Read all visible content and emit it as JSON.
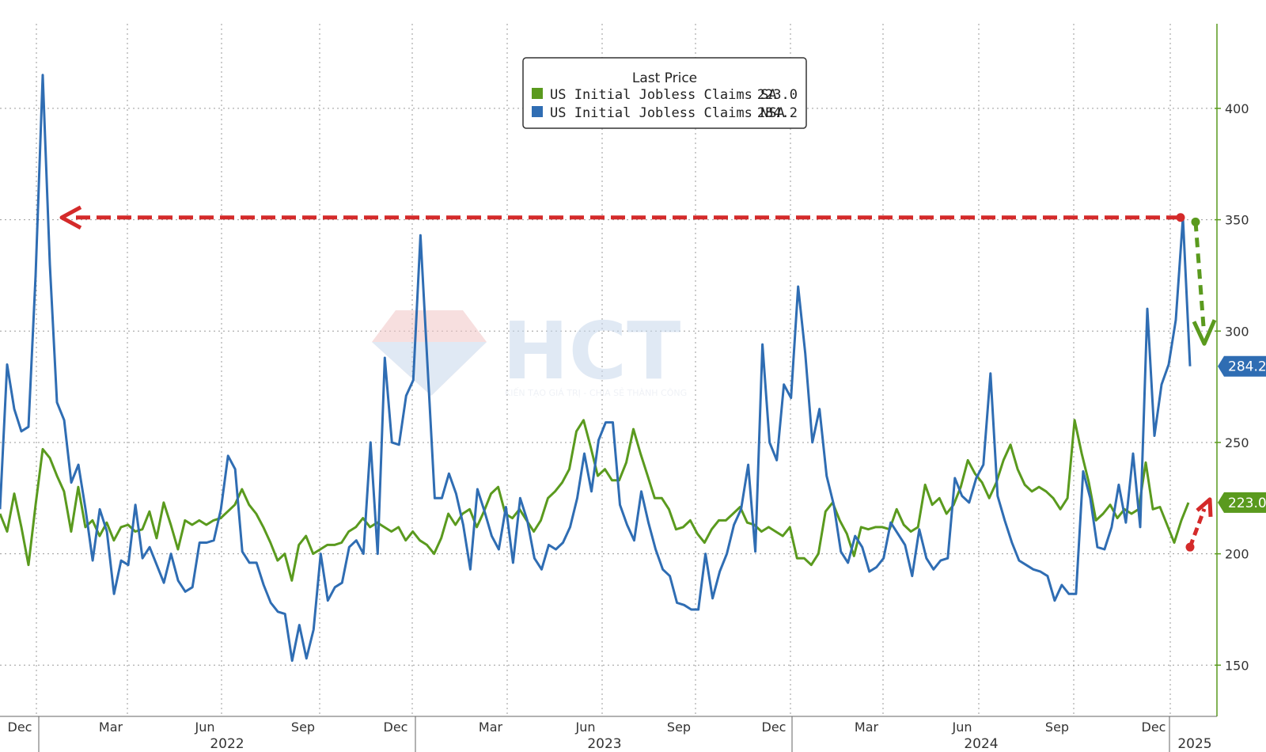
{
  "chart_data": {
    "type": "line",
    "legend": {
      "title": "Last Price",
      "placement": "top-center",
      "entries": [
        {
          "name": "US Initial Jobless Claims SA",
          "last": "223.0",
          "color": "#5a9a1e"
        },
        {
          "name": "US Initial Jobless Claims NSA",
          "last": "284.2",
          "color": "#2f6db3"
        }
      ]
    },
    "y_axis": {
      "side": "right",
      "ticks": [
        150,
        200,
        250,
        300,
        350,
        400
      ],
      "ylim": [
        127,
        438
      ],
      "grid": true
    },
    "x_axis": {
      "month_ticks": [
        "Dec",
        "Mar",
        "Jun",
        "Sep",
        "Dec",
        "Mar",
        "Jun",
        "Sep",
        "Dec",
        "Mar",
        "Jun",
        "Sep",
        "Dec"
      ],
      "year_labels": [
        "2022",
        "2023",
        "2024",
        "2025"
      ],
      "grid": true
    },
    "series": [
      {
        "name": "US Initial Jobless Claims NSA",
        "color": "#2f6db3",
        "values": [
          220,
          285,
          265,
          255,
          257,
          325,
          415,
          330,
          268,
          260,
          232,
          240,
          220,
          197,
          220,
          210,
          182,
          197,
          195,
          222,
          198,
          203,
          195,
          187,
          200,
          188,
          183,
          185,
          205,
          205,
          206,
          220,
          244,
          238,
          201,
          196,
          196,
          186,
          178,
          174,
          173,
          152,
          168,
          153,
          166,
          200,
          179,
          185,
          187,
          203,
          206,
          200,
          250,
          200,
          288,
          250,
          249,
          271,
          278,
          343,
          284,
          225,
          225,
          236,
          227,
          213,
          193,
          229,
          219,
          208,
          202,
          221,
          196,
          225,
          215,
          198,
          193,
          204,
          202,
          205,
          212,
          225,
          245,
          228,
          251,
          259,
          259,
          222,
          213,
          206,
          228,
          214,
          202,
          193,
          190,
          178,
          177,
          175,
          175,
          200,
          180,
          192,
          200,
          213,
          220,
          240,
          201,
          294,
          250,
          242,
          276,
          270,
          320,
          290,
          250,
          265,
          235,
          222,
          201,
          196,
          208,
          203,
          192,
          194,
          198,
          214,
          209,
          204,
          190,
          211,
          198,
          193,
          197,
          198,
          234,
          226,
          223,
          234,
          240,
          281,
          226,
          215,
          205,
          197,
          195,
          193,
          192,
          190,
          179,
          186,
          182,
          182,
          237,
          225,
          203,
          202,
          212,
          231,
          214,
          245,
          212,
          310,
          253,
          276,
          285,
          305,
          351,
          284.2
        ],
        "last_value": "284.2"
      },
      {
        "name": "US Initial Jobless Claims SA",
        "color": "#5a9a1e",
        "values": [
          218,
          210,
          227,
          212,
          195,
          222,
          247,
          243,
          235,
          228,
          210,
          230,
          212,
          215,
          208,
          214,
          206,
          212,
          213,
          210,
          211,
          219,
          207,
          223,
          213,
          202,
          215,
          213,
          215,
          213,
          215,
          216,
          219,
          222,
          229,
          222,
          218,
          212,
          205,
          197,
          200,
          188,
          204,
          208,
          200,
          202,
          204,
          204,
          205,
          210,
          212,
          216,
          212,
          214,
          212,
          210,
          212,
          206,
          210,
          206,
          204,
          200,
          207,
          218,
          213,
          218,
          220,
          212,
          219,
          227,
          230,
          218,
          216,
          220,
          215,
          210,
          215,
          225,
          228,
          232,
          238,
          255,
          260,
          248,
          235,
          238,
          233,
          233,
          241,
          256,
          245,
          235,
          225,
          225,
          220,
          211,
          212,
          215,
          209,
          205,
          211,
          215,
          215,
          218,
          221,
          214,
          213,
          210,
          212,
          210,
          208,
          212,
          198,
          198,
          195,
          200,
          219,
          223,
          215,
          209,
          199,
          212,
          211,
          212,
          212,
          211,
          220,
          213,
          210,
          212,
          231,
          222,
          225,
          218,
          222,
          230,
          242,
          236,
          232,
          225,
          232,
          242,
          249,
          238,
          231,
          228,
          230,
          228,
          225,
          220,
          225,
          260,
          245,
          232,
          215,
          218,
          222,
          216,
          220,
          218,
          220,
          241,
          220,
          221,
          213,
          205,
          215,
          223
        ],
        "last_value": "223.0"
      }
    ],
    "annotations": [
      {
        "type": "dashed-arrow",
        "color": "#d42a2a",
        "from_value": 351,
        "to_value": 351,
        "direction": "left"
      },
      {
        "type": "dashed-arrow",
        "color": "#5a9a1e",
        "from_value": 349,
        "to_value": 300,
        "direction": "down"
      },
      {
        "type": "dashed-arrow",
        "color": "#d42a2a",
        "from_value": 203,
        "to_value": 223,
        "direction": "up"
      }
    ],
    "watermark": {
      "text": "HCT",
      "subtext": "KIẾN TẠO GIÁ TRỊ - CHIA SẺ THÀNH CÔNG"
    }
  }
}
